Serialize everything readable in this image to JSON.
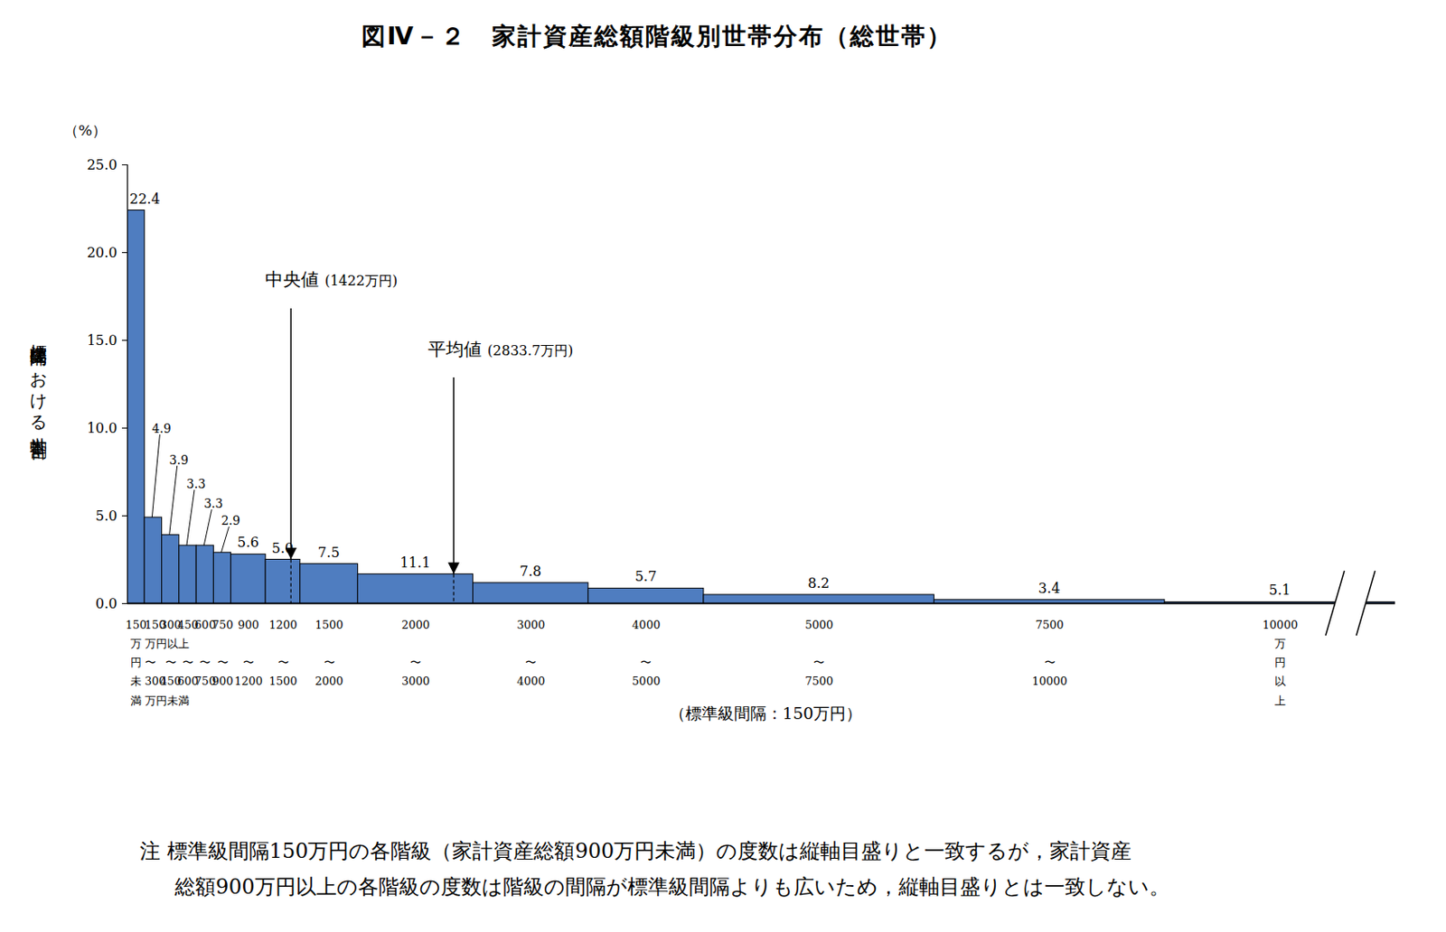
{
  "chart_data": {
    "type": "histogram",
    "title": "図Ⅳ－２　家計資産総額階級別世帯分布（総世帯）",
    "y_unit": "（%）",
    "y_label": "標準級間隔における世帯割合",
    "x_label": "（標準級間隔：150万円）",
    "standard_interval": 150,
    "bins": [
      0,
      150,
      300,
      450,
      600,
      750,
      900,
      1200,
      1500,
      2000,
      3000,
      4000,
      5000,
      7500,
      10000,
      20000
    ],
    "values": [
      22.4,
      4.9,
      3.9,
      3.3,
      3.3,
      2.9,
      5.6,
      5.0,
      7.5,
      11.1,
      7.8,
      5.7,
      8.2,
      3.4,
      5.1
    ],
    "value_labels": [
      "22.4",
      "4.9",
      "3.9",
      "3.3",
      "3.3",
      "2.9",
      "5.6",
      "5.0",
      "7.5",
      "11.1",
      "7.8",
      "5.7",
      "8.2",
      "3.4",
      "5.1"
    ],
    "bin_labels": [
      "150\n万\n円\n未\n満",
      "150\n万円以上\n〜\n300\n万円未満",
      "300\n\n〜\n450",
      "450\n\n〜\n600",
      "600\n\n〜\n750",
      "750\n\n〜\n900",
      "900\n\n〜\n1200",
      "1200\n\n〜\n1500",
      "1500\n\n〜\n2000",
      "2000\n\n〜\n3000",
      "3000\n\n〜\n4000",
      "4000\n\n〜\n5000",
      "5000\n\n〜\n7500",
      "7500\n\n〜\n10000",
      "10000\n万\n円\n以\n上"
    ],
    "color": "#4f7dc0",
    "xlim": [
      0,
      20000
    ],
    "ylim": [
      0,
      25
    ],
    "yticks": [
      {
        "value": 0,
        "label": "0.0"
      },
      {
        "value": 5,
        "label": "5.0"
      },
      {
        "value": 10,
        "label": "10.0"
      },
      {
        "value": 15,
        "label": "15.0"
      },
      {
        "value": 20,
        "label": "20.0"
      },
      {
        "value": 25,
        "label": "25.0"
      }
    ],
    "data_labels": true,
    "annotations": [
      {
        "label": "中央値 (1422万円)",
        "value": 1422
      },
      {
        "label": "平均値 (2833.7万円)",
        "value": 2833.7
      }
    ],
    "note": [
      "注 標準級間隔150万円の各階級（家計資産総額900万円未満）の度数は縦軸目盛りと一致するが，家計資産",
      "総額900万円以上の各階級の度数は階級の間隔が標準級間隔よりも広いため，縦軸目盛りとは一致しない。"
    ]
  }
}
